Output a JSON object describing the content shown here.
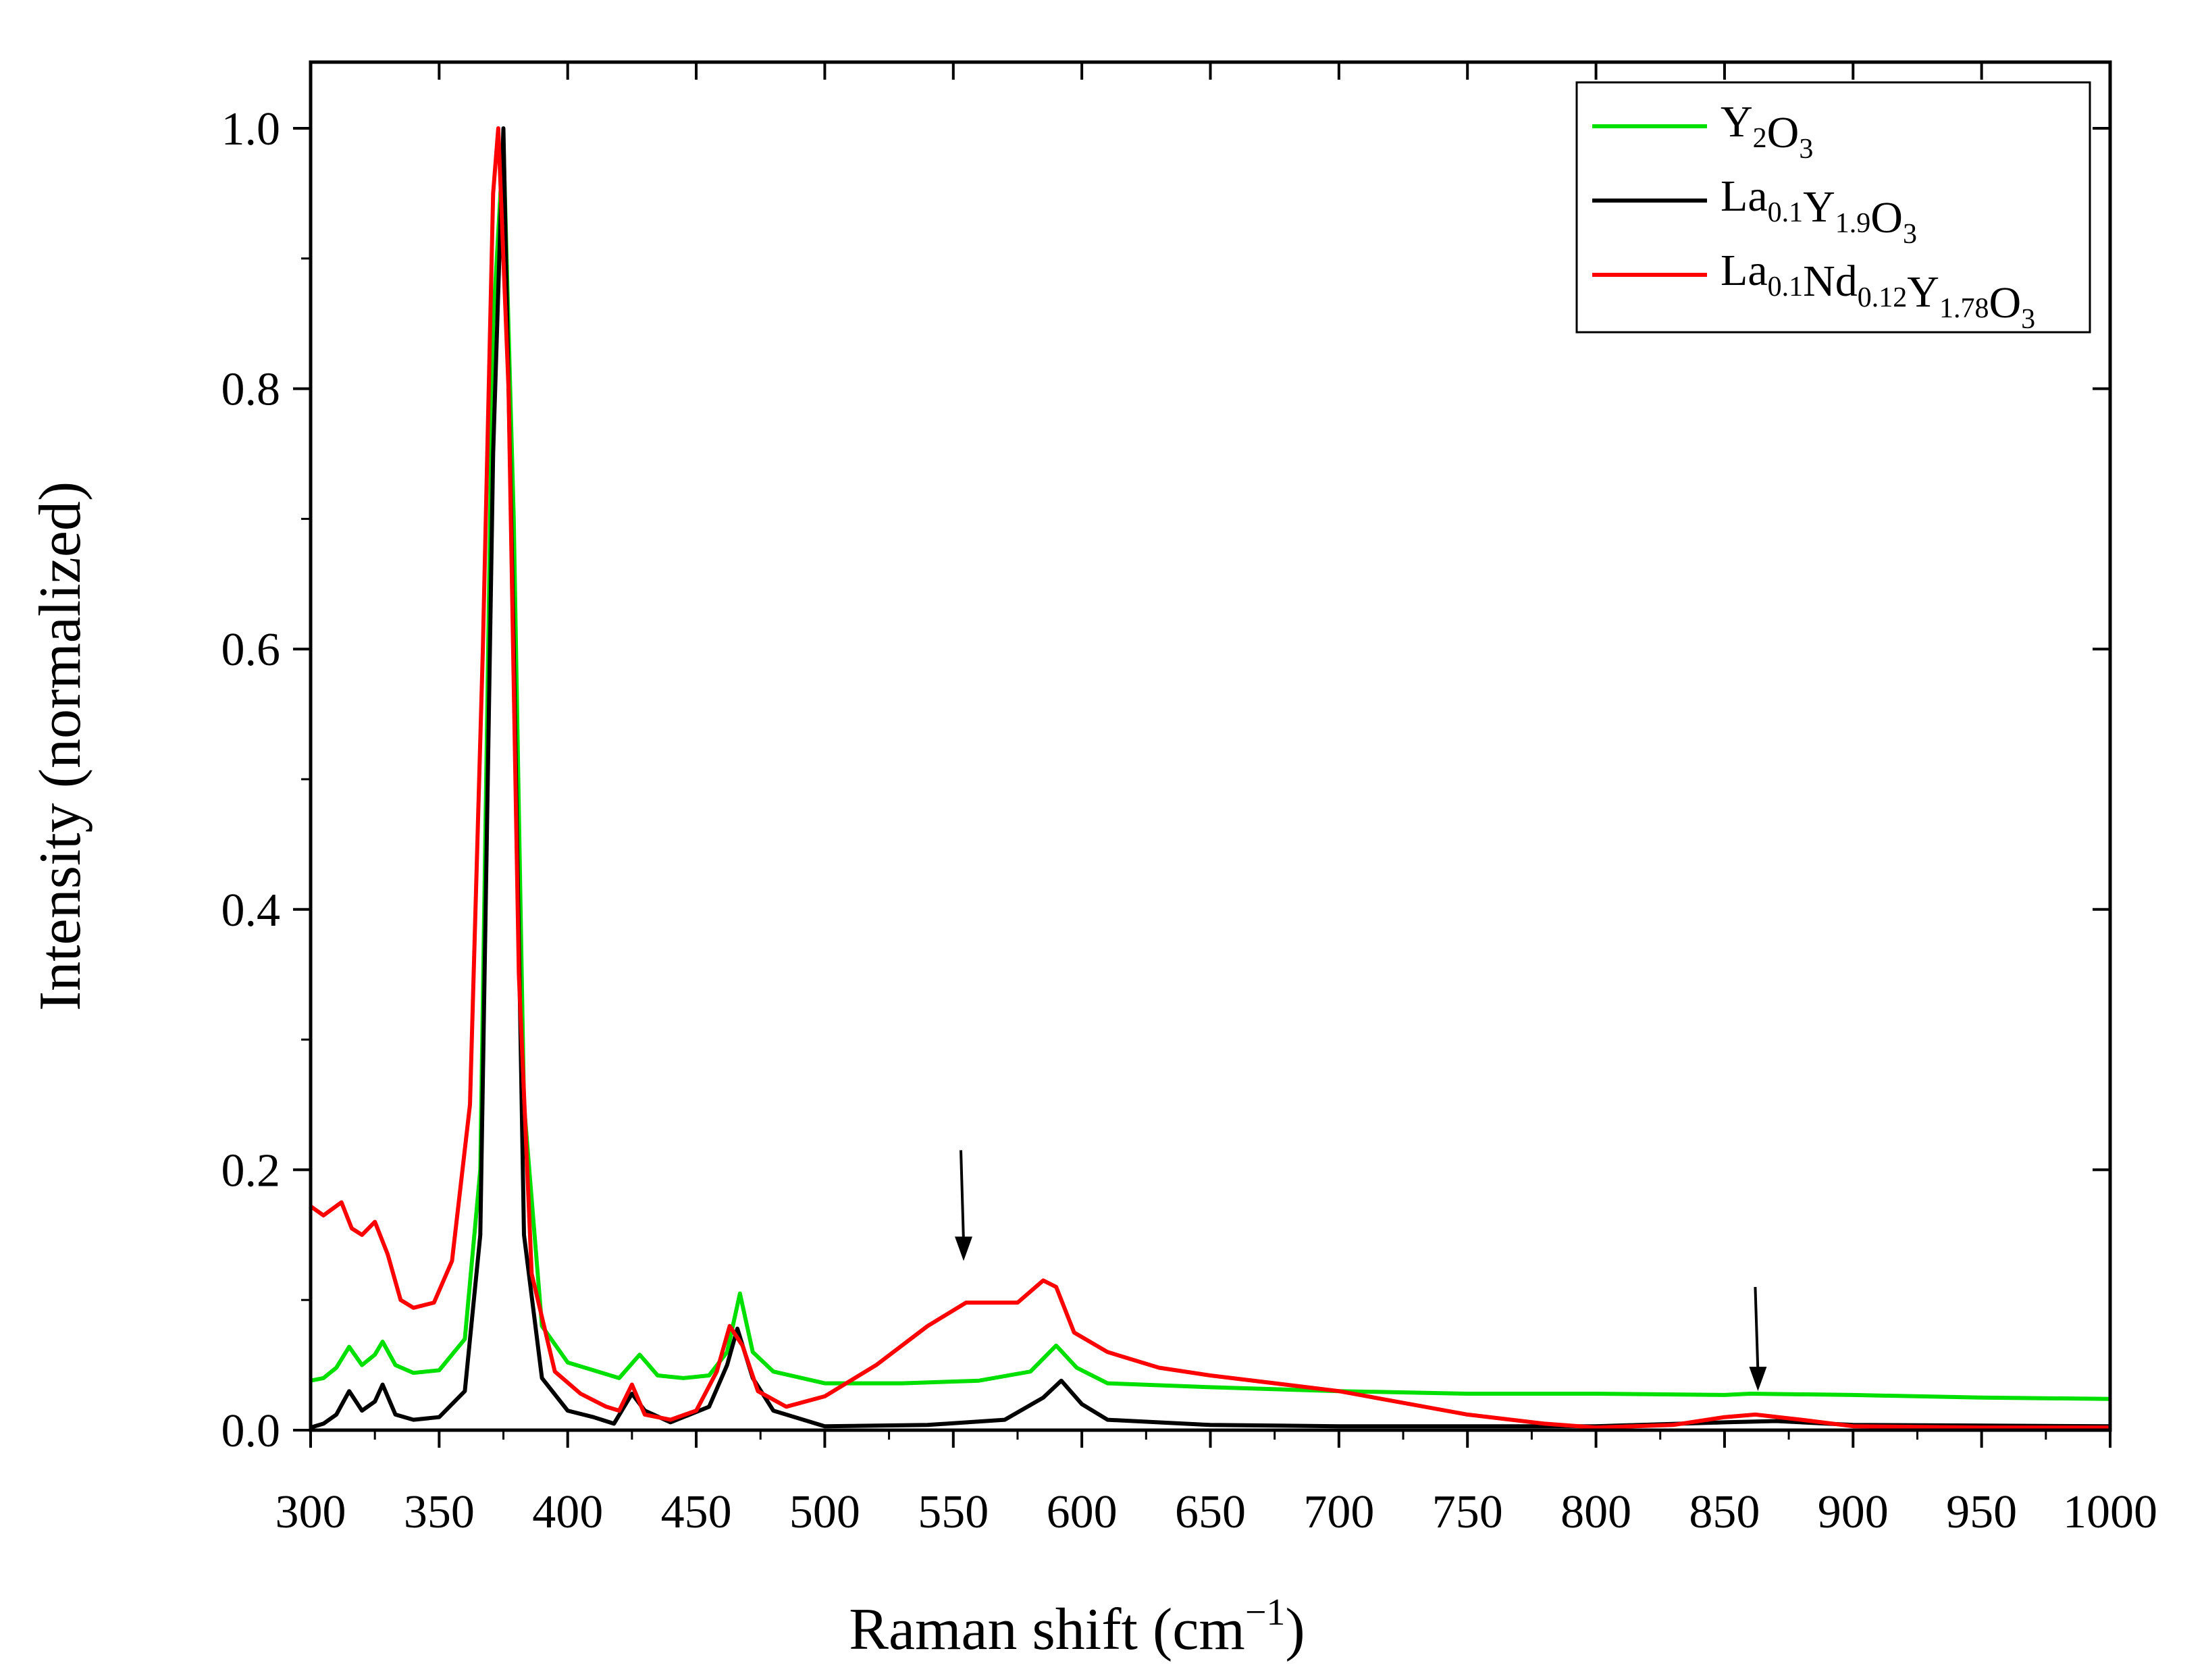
{
  "chart_data": {
    "type": "line",
    "title": "",
    "xlabel": "Raman shift (cm",
    "xlabel_sup": "−1",
    "xlabel_close": ")",
    "ylabel": "Intensity (normalized)",
    "xlim": [
      300,
      1000
    ],
    "ylim": [
      0.0,
      1.05
    ],
    "grid": false,
    "legend_position": "top-right",
    "x_ticks": [
      300,
      350,
      400,
      450,
      500,
      550,
      600,
      650,
      700,
      750,
      800,
      850,
      900,
      950,
      1000
    ],
    "x_tick_labels": [
      "300",
      "350",
      "400",
      "450",
      "500",
      "550",
      "600",
      "650",
      "700",
      "750",
      "800",
      "850",
      "900",
      "950",
      "1000"
    ],
    "y_ticks": [
      0.0,
      0.2,
      0.4,
      0.6,
      0.8,
      1.0
    ],
    "y_tick_labels": [
      "0.0",
      "0.2",
      "0.4",
      "0.6",
      "0.8",
      "1.0"
    ],
    "series": [
      {
        "name": "Y2O3",
        "legend_parts": [
          [
            "Y",
            ""
          ],
          [
            "2",
            "sub"
          ],
          [
            "O",
            ""
          ],
          [
            "3",
            "sub"
          ]
        ],
        "color": "#00e000",
        "points": [
          [
            300,
            0.038
          ],
          [
            305,
            0.04
          ],
          [
            310,
            0.048
          ],
          [
            315,
            0.064
          ],
          [
            320,
            0.05
          ],
          [
            325,
            0.058
          ],
          [
            328,
            0.068
          ],
          [
            333,
            0.05
          ],
          [
            340,
            0.044
          ],
          [
            350,
            0.046
          ],
          [
            360,
            0.07
          ],
          [
            366,
            0.2
          ],
          [
            371,
            0.85
          ],
          [
            375,
            0.99
          ],
          [
            379,
            0.7
          ],
          [
            383,
            0.25
          ],
          [
            390,
            0.08
          ],
          [
            400,
            0.052
          ],
          [
            410,
            0.046
          ],
          [
            420,
            0.04
          ],
          [
            428,
            0.058
          ],
          [
            435,
            0.042
          ],
          [
            445,
            0.04
          ],
          [
            455,
            0.042
          ],
          [
            462,
            0.06
          ],
          [
            467,
            0.105
          ],
          [
            472,
            0.06
          ],
          [
            480,
            0.045
          ],
          [
            500,
            0.036
          ],
          [
            530,
            0.036
          ],
          [
            560,
            0.038
          ],
          [
            580,
            0.045
          ],
          [
            590,
            0.065
          ],
          [
            598,
            0.048
          ],
          [
            610,
            0.036
          ],
          [
            650,
            0.033
          ],
          [
            700,
            0.03
          ],
          [
            750,
            0.028
          ],
          [
            800,
            0.028
          ],
          [
            850,
            0.027
          ],
          [
            860,
            0.028
          ],
          [
            900,
            0.027
          ],
          [
            950,
            0.025
          ],
          [
            1000,
            0.024
          ]
        ]
      },
      {
        "name": "La0.1Y1.9O3",
        "legend_parts": [
          [
            "La",
            ""
          ],
          [
            "0.1",
            "sub"
          ],
          [
            "Y",
            ""
          ],
          [
            "1.9",
            "sub"
          ],
          [
            "O",
            ""
          ],
          [
            "3",
            "sub"
          ]
        ],
        "color": "#000000",
        "points": [
          [
            300,
            0.002
          ],
          [
            305,
            0.005
          ],
          [
            310,
            0.012
          ],
          [
            315,
            0.03
          ],
          [
            320,
            0.015
          ],
          [
            325,
            0.022
          ],
          [
            328,
            0.035
          ],
          [
            333,
            0.012
          ],
          [
            340,
            0.008
          ],
          [
            350,
            0.01
          ],
          [
            360,
            0.03
          ],
          [
            366,
            0.15
          ],
          [
            371,
            0.75
          ],
          [
            375,
            1.0
          ],
          [
            379,
            0.6
          ],
          [
            383,
            0.15
          ],
          [
            390,
            0.04
          ],
          [
            400,
            0.015
          ],
          [
            410,
            0.01
          ],
          [
            418,
            0.005
          ],
          [
            425,
            0.028
          ],
          [
            430,
            0.015
          ],
          [
            440,
            0.006
          ],
          [
            455,
            0.018
          ],
          [
            462,
            0.05
          ],
          [
            466,
            0.078
          ],
          [
            472,
            0.04
          ],
          [
            480,
            0.015
          ],
          [
            500,
            0.003
          ],
          [
            540,
            0.004
          ],
          [
            570,
            0.008
          ],
          [
            585,
            0.025
          ],
          [
            592,
            0.038
          ],
          [
            600,
            0.02
          ],
          [
            610,
            0.008
          ],
          [
            650,
            0.004
          ],
          [
            700,
            0.003
          ],
          [
            800,
            0.003
          ],
          [
            850,
            0.006
          ],
          [
            870,
            0.007
          ],
          [
            900,
            0.004
          ],
          [
            1000,
            0.003
          ]
        ]
      },
      {
        "name": "La0.1Nd0.12Y1.78O3",
        "legend_parts": [
          [
            "La",
            ""
          ],
          [
            "0.1",
            "sub"
          ],
          [
            "Nd",
            ""
          ],
          [
            "0.12",
            "sub"
          ],
          [
            "Y",
            ""
          ],
          [
            "1.78",
            "sub"
          ],
          [
            "O",
            ""
          ],
          [
            "3",
            "sub"
          ]
        ],
        "color": "#ff0000",
        "points": [
          [
            300,
            0.172
          ],
          [
            305,
            0.165
          ],
          [
            312,
            0.175
          ],
          [
            316,
            0.155
          ],
          [
            320,
            0.15
          ],
          [
            325,
            0.16
          ],
          [
            330,
            0.135
          ],
          [
            335,
            0.1
          ],
          [
            340,
            0.094
          ],
          [
            348,
            0.098
          ],
          [
            355,
            0.13
          ],
          [
            362,
            0.25
          ],
          [
            367,
            0.6
          ],
          [
            371,
            0.95
          ],
          [
            373,
            1.0
          ],
          [
            377,
            0.8
          ],
          [
            381,
            0.35
          ],
          [
            386,
            0.12
          ],
          [
            395,
            0.045
          ],
          [
            405,
            0.028
          ],
          [
            415,
            0.018
          ],
          [
            420,
            0.015
          ],
          [
            425,
            0.035
          ],
          [
            430,
            0.012
          ],
          [
            440,
            0.008
          ],
          [
            450,
            0.015
          ],
          [
            458,
            0.045
          ],
          [
            463,
            0.08
          ],
          [
            468,
            0.065
          ],
          [
            474,
            0.03
          ],
          [
            485,
            0.018
          ],
          [
            500,
            0.026
          ],
          [
            520,
            0.05
          ],
          [
            540,
            0.08
          ],
          [
            555,
            0.098
          ],
          [
            565,
            0.098
          ],
          [
            575,
            0.098
          ],
          [
            585,
            0.115
          ],
          [
            590,
            0.11
          ],
          [
            597,
            0.075
          ],
          [
            610,
            0.06
          ],
          [
            630,
            0.048
          ],
          [
            650,
            0.042
          ],
          [
            700,
            0.03
          ],
          [
            750,
            0.012
          ],
          [
            780,
            0.005
          ],
          [
            800,
            0.002
          ],
          [
            830,
            0.004
          ],
          [
            850,
            0.01
          ],
          [
            862,
            0.012
          ],
          [
            880,
            0.008
          ],
          [
            900,
            0.003
          ],
          [
            950,
            0.002
          ],
          [
            1000,
            0.002
          ]
        ]
      }
    ],
    "annotations": [
      {
        "type": "arrow",
        "x": 554,
        "y_top": 0.215,
        "y_tip": 0.13
      },
      {
        "type": "arrow",
        "x": 863,
        "y_top": 0.11,
        "y_tip": 0.03
      }
    ]
  }
}
